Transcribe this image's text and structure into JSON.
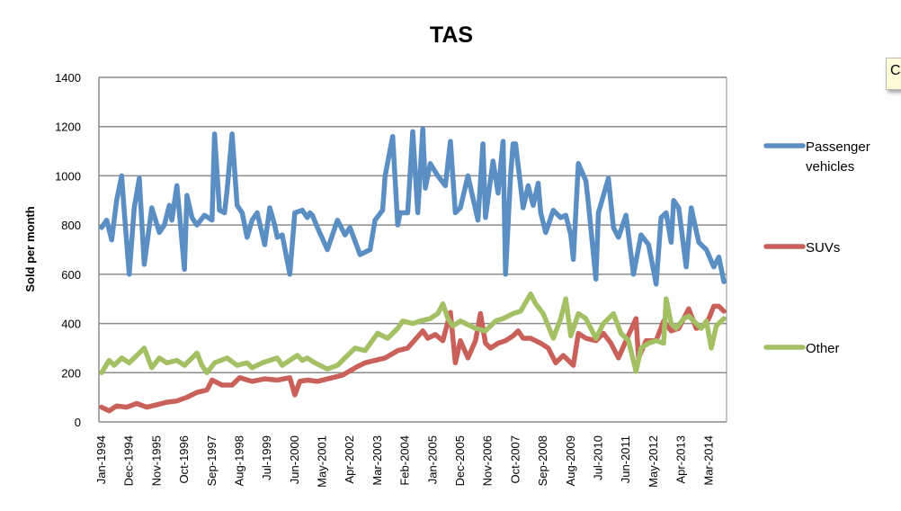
{
  "tooltip": {
    "text": "C"
  },
  "chart_data": {
    "type": "line",
    "title": "TAS",
    "xlabel": "",
    "ylabel": "Sold per month",
    "ylim": [
      0,
      1400
    ],
    "yticks": [
      0,
      200,
      400,
      600,
      800,
      1000,
      1200,
      1400
    ],
    "grid": true,
    "legend": "right",
    "x_unit": "month index from Jan-1994",
    "xlim": [
      0,
      248
    ],
    "xtick_interval_months": 11,
    "xtick_labels": [
      "Jan-1994",
      "Dec-1994",
      "Nov-1995",
      "Oct-1996",
      "Sep-1997",
      "Aug-1998",
      "Jul-1999",
      "Jun-2000",
      "May-2001",
      "Apr-2002",
      "Mar-2003",
      "Feb-2004",
      "Jan-2005",
      "Dec-2005",
      "Nov-2006",
      "Oct-2007",
      "Sep-2008",
      "Aug-2009",
      "Jul-2010",
      "Jun-2011",
      "May-2012",
      "Apr-2013",
      "Mar-2014"
    ],
    "series": [
      {
        "name": "Passenger vehicles",
        "legend_lines": [
          "Passenger",
          "vehicles"
        ],
        "color": "#5b8fc4",
        "points": [
          [
            0,
            790
          ],
          [
            2,
            820
          ],
          [
            4,
            740
          ],
          [
            6,
            900
          ],
          [
            8,
            1000
          ],
          [
            9,
            860
          ],
          [
            11,
            600
          ],
          [
            13,
            870
          ],
          [
            15,
            990
          ],
          [
            17,
            640
          ],
          [
            20,
            870
          ],
          [
            23,
            770
          ],
          [
            25,
            800
          ],
          [
            27,
            880
          ],
          [
            28,
            820
          ],
          [
            30,
            960
          ],
          [
            31,
            850
          ],
          [
            33,
            620
          ],
          [
            34,
            920
          ],
          [
            36,
            830
          ],
          [
            38,
            800
          ],
          [
            41,
            840
          ],
          [
            44,
            820
          ],
          [
            45,
            1170
          ],
          [
            47,
            860
          ],
          [
            49,
            850
          ],
          [
            50,
            940
          ],
          [
            52,
            1170
          ],
          [
            54,
            880
          ],
          [
            56,
            850
          ],
          [
            58,
            750
          ],
          [
            60,
            820
          ],
          [
            62,
            850
          ],
          [
            65,
            720
          ],
          [
            67,
            870
          ],
          [
            69,
            800
          ],
          [
            70,
            750
          ],
          [
            72,
            760
          ],
          [
            75,
            600
          ],
          [
            77,
            850
          ],
          [
            80,
            860
          ],
          [
            82,
            830
          ],
          [
            83,
            850
          ],
          [
            84,
            840
          ],
          [
            86,
            790
          ],
          [
            90,
            700
          ],
          [
            94,
            820
          ],
          [
            97,
            760
          ],
          [
            99,
            790
          ],
          [
            103,
            680
          ],
          [
            107,
            700
          ],
          [
            109,
            820
          ],
          [
            112,
            860
          ],
          [
            113,
            1000
          ],
          [
            116,
            1160
          ],
          [
            118,
            800
          ],
          [
            119,
            850
          ],
          [
            122,
            850
          ],
          [
            124,
            1180
          ],
          [
            126,
            850
          ],
          [
            128,
            1190
          ],
          [
            129,
            950
          ],
          [
            131,
            1050
          ],
          [
            134,
            1000
          ],
          [
            137,
            960
          ],
          [
            139,
            1140
          ],
          [
            141,
            850
          ],
          [
            143,
            870
          ],
          [
            146,
            1000
          ],
          [
            150,
            820
          ],
          [
            152,
            1130
          ],
          [
            153,
            830
          ],
          [
            156,
            1060
          ],
          [
            158,
            930
          ],
          [
            160,
            1140
          ],
          [
            161,
            600
          ],
          [
            163,
            1000
          ],
          [
            164,
            1130
          ],
          [
            165,
            1130
          ],
          [
            168,
            870
          ],
          [
            170,
            960
          ],
          [
            172,
            880
          ],
          [
            174,
            970
          ],
          [
            175,
            850
          ],
          [
            177,
            770
          ],
          [
            180,
            860
          ],
          [
            183,
            830
          ],
          [
            185,
            840
          ],
          [
            187,
            760
          ],
          [
            188,
            660
          ],
          [
            190,
            1050
          ],
          [
            193,
            980
          ],
          [
            194,
            890
          ],
          [
            197,
            580
          ],
          [
            198,
            850
          ],
          [
            202,
            990
          ],
          [
            204,
            790
          ],
          [
            206,
            750
          ],
          [
            209,
            840
          ],
          [
            212,
            600
          ],
          [
            215,
            760
          ],
          [
            218,
            720
          ],
          [
            221,
            560
          ],
          [
            223,
            830
          ],
          [
            225,
            850
          ],
          [
            227,
            730
          ],
          [
            228,
            900
          ],
          [
            230,
            870
          ],
          [
            233,
            630
          ],
          [
            235,
            870
          ],
          [
            238,
            730
          ],
          [
            241,
            700
          ],
          [
            244,
            630
          ],
          [
            246,
            670
          ],
          [
            248,
            570
          ]
        ]
      },
      {
        "name": "SUVs",
        "legend_lines": [
          "SUVs"
        ],
        "color": "#c9605a",
        "points": [
          [
            0,
            60
          ],
          [
            3,
            45
          ],
          [
            6,
            65
          ],
          [
            10,
            60
          ],
          [
            14,
            75
          ],
          [
            18,
            60
          ],
          [
            22,
            70
          ],
          [
            26,
            80
          ],
          [
            30,
            85
          ],
          [
            34,
            100
          ],
          [
            38,
            120
          ],
          [
            42,
            130
          ],
          [
            44,
            170
          ],
          [
            48,
            150
          ],
          [
            52,
            150
          ],
          [
            55,
            180
          ],
          [
            60,
            165
          ],
          [
            65,
            175
          ],
          [
            70,
            170
          ],
          [
            75,
            180
          ],
          [
            77,
            110
          ],
          [
            79,
            165
          ],
          [
            82,
            170
          ],
          [
            86,
            165
          ],
          [
            92,
            180
          ],
          [
            96,
            190
          ],
          [
            102,
            225
          ],
          [
            105,
            240
          ],
          [
            109,
            250
          ],
          [
            113,
            260
          ],
          [
            118,
            290
          ],
          [
            122,
            300
          ],
          [
            128,
            370
          ],
          [
            130,
            340
          ],
          [
            133,
            355
          ],
          [
            136,
            330
          ],
          [
            139,
            445
          ],
          [
            141,
            240
          ],
          [
            143,
            330
          ],
          [
            146,
            260
          ],
          [
            149,
            330
          ],
          [
            151,
            440
          ],
          [
            153,
            320
          ],
          [
            155,
            300
          ],
          [
            158,
            320
          ],
          [
            161,
            330
          ],
          [
            164,
            350
          ],
          [
            166,
            370
          ],
          [
            168,
            340
          ],
          [
            171,
            340
          ],
          [
            175,
            320
          ],
          [
            178,
            300
          ],
          [
            181,
            240
          ],
          [
            184,
            270
          ],
          [
            188,
            230
          ],
          [
            190,
            360
          ],
          [
            193,
            340
          ],
          [
            197,
            330
          ],
          [
            200,
            360
          ],
          [
            203,
            320
          ],
          [
            206,
            260
          ],
          [
            209,
            330
          ],
          [
            213,
            420
          ],
          [
            214,
            260
          ],
          [
            217,
            330
          ],
          [
            221,
            330
          ],
          [
            224,
            410
          ],
          [
            227,
            370
          ],
          [
            230,
            380
          ],
          [
            234,
            460
          ],
          [
            237,
            380
          ],
          [
            240,
            390
          ],
          [
            242,
            420
          ],
          [
            244,
            470
          ],
          [
            246,
            470
          ],
          [
            248,
            450
          ]
        ]
      },
      {
        "name": "Other",
        "legend_lines": [
          "Other"
        ],
        "color": "#a4c064",
        "points": [
          [
            0,
            200
          ],
          [
            3,
            250
          ],
          [
            5,
            230
          ],
          [
            8,
            260
          ],
          [
            11,
            240
          ],
          [
            14,
            270
          ],
          [
            17,
            300
          ],
          [
            20,
            220
          ],
          [
            23,
            260
          ],
          [
            26,
            240
          ],
          [
            30,
            250
          ],
          [
            33,
            230
          ],
          [
            36,
            260
          ],
          [
            38,
            280
          ],
          [
            40,
            230
          ],
          [
            42,
            200
          ],
          [
            45,
            240
          ],
          [
            50,
            260
          ],
          [
            54,
            230
          ],
          [
            58,
            240
          ],
          [
            60,
            220
          ],
          [
            64,
            240
          ],
          [
            67,
            250
          ],
          [
            70,
            260
          ],
          [
            72,
            230
          ],
          [
            75,
            250
          ],
          [
            78,
            270
          ],
          [
            80,
            250
          ],
          [
            82,
            260
          ],
          [
            85,
            240
          ],
          [
            90,
            215
          ],
          [
            94,
            230
          ],
          [
            98,
            270
          ],
          [
            101,
            300
          ],
          [
            105,
            290
          ],
          [
            110,
            360
          ],
          [
            114,
            340
          ],
          [
            118,
            380
          ],
          [
            120,
            410
          ],
          [
            124,
            400
          ],
          [
            127,
            410
          ],
          [
            131,
            420
          ],
          [
            134,
            440
          ],
          [
            136,
            480
          ],
          [
            138,
            420
          ],
          [
            140,
            390
          ],
          [
            143,
            410
          ],
          [
            145,
            400
          ],
          [
            149,
            380
          ],
          [
            153,
            370
          ],
          [
            155,
            390
          ],
          [
            157,
            410
          ],
          [
            160,
            420
          ],
          [
            164,
            440
          ],
          [
            167,
            450
          ],
          [
            171,
            520
          ],
          [
            173,
            480
          ],
          [
            176,
            440
          ],
          [
            180,
            340
          ],
          [
            183,
            420
          ],
          [
            185,
            500
          ],
          [
            187,
            350
          ],
          [
            190,
            440
          ],
          [
            193,
            420
          ],
          [
            197,
            340
          ],
          [
            200,
            400
          ],
          [
            204,
            440
          ],
          [
            207,
            360
          ],
          [
            210,
            330
          ],
          [
            213,
            205
          ],
          [
            215,
            300
          ],
          [
            218,
            320
          ],
          [
            221,
            330
          ],
          [
            224,
            320
          ],
          [
            225,
            500
          ],
          [
            227,
            400
          ],
          [
            229,
            380
          ],
          [
            232,
            420
          ],
          [
            234,
            430
          ],
          [
            237,
            400
          ],
          [
            239,
            380
          ],
          [
            241,
            410
          ],
          [
            243,
            300
          ],
          [
            245,
            390
          ],
          [
            248,
            420
          ]
        ]
      }
    ]
  }
}
